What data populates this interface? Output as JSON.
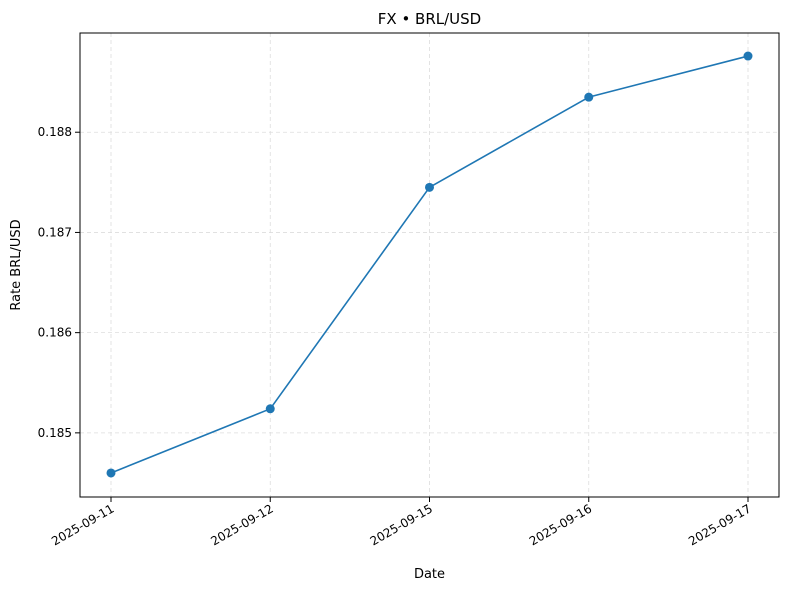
{
  "chart_data": {
    "type": "line",
    "title": "FX • BRL/USD",
    "xlabel": "Date",
    "ylabel": "Rate BRL/USD",
    "x": [
      "2025-09-11",
      "2025-09-12",
      "2025-09-15",
      "2025-09-16",
      "2025-09-17"
    ],
    "series": [
      {
        "values": [
          0.1846,
          0.18524,
          0.18745,
          0.18835,
          0.18876
        ]
      }
    ],
    "yticks": [
      "0.185",
      "0.186",
      "0.187",
      "0.188"
    ],
    "ylim": [
      0.18436,
      0.18899
    ],
    "grid": true,
    "x_tick_rotation": "30deg",
    "colors": {
      "line": "#1f77b4",
      "grid": "#dddddd",
      "axes": "#000000"
    }
  }
}
